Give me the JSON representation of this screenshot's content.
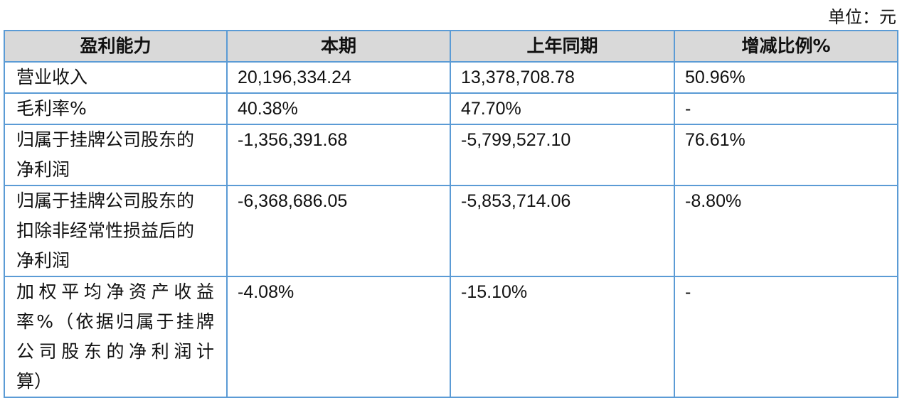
{
  "unit_label": "单位：元",
  "table": {
    "headers": [
      "盈利能力",
      "本期",
      "上年同期",
      "增减比例%"
    ],
    "rows": [
      {
        "label": [
          "营业收入"
        ],
        "current": "20,196,334.24",
        "previous": "13,378,708.78",
        "change": "50.96%"
      },
      {
        "label": [
          "毛利率%"
        ],
        "current": "40.38%",
        "previous": "47.70%",
        "change": "-"
      },
      {
        "label": [
          "归属于挂牌公司股东的",
          "净利润"
        ],
        "current": "-1,356,391.68",
        "previous": "-5,799,527.10",
        "change": "76.61%"
      },
      {
        "label": [
          "归属于挂牌公司股东的",
          "扣除非经常性损益后的",
          "净利润"
        ],
        "current": "-6,368,686.05",
        "previous": "-5,853,714.06",
        "change": "-8.80%"
      },
      {
        "label": [
          "加权平均净资产收益",
          "率%（依据归属于挂牌",
          "公司股东的净利润计",
          "算）"
        ],
        "current": "-4.08%",
        "previous": "-15.10%",
        "change": "-"
      }
    ]
  }
}
